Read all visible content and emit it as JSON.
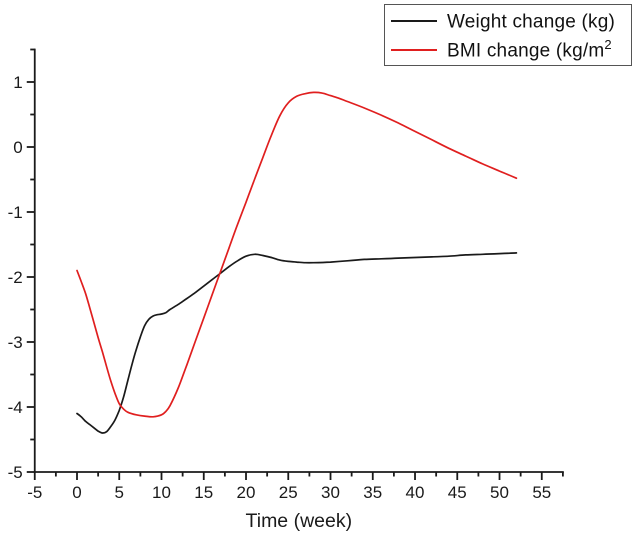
{
  "chart_data": {
    "type": "line",
    "title": "",
    "xlabel": "Time (week)",
    "ylabel": "",
    "xlim": [
      -5,
      57.5
    ],
    "ylim": [
      -5,
      1.5
    ],
    "x_ticks": [
      -5,
      0,
      5,
      10,
      15,
      20,
      25,
      30,
      35,
      40,
      45,
      50,
      55
    ],
    "x_minor_step": 2.5,
    "y_ticks": [
      1,
      0,
      -1,
      -2,
      -3,
      -4,
      -5
    ],
    "y_minor_step": 0.5,
    "grid": false,
    "legend_position": "top-right",
    "series": [
      {
        "name": "Weight change (kg)",
        "color": "#1a1a1a",
        "points": [
          [
            0,
            -4.1
          ],
          [
            0.5,
            -4.15
          ],
          [
            1,
            -4.22
          ],
          [
            1.5,
            -4.27
          ],
          [
            2,
            -4.32
          ],
          [
            2.5,
            -4.37
          ],
          [
            3,
            -4.4
          ],
          [
            3.5,
            -4.38
          ],
          [
            4,
            -4.3
          ],
          [
            4.5,
            -4.2
          ],
          [
            5,
            -4.05
          ],
          [
            5.5,
            -3.85
          ],
          [
            6,
            -3.6
          ],
          [
            6.5,
            -3.35
          ],
          [
            7,
            -3.12
          ],
          [
            7.5,
            -2.92
          ],
          [
            8,
            -2.75
          ],
          [
            8.5,
            -2.65
          ],
          [
            9,
            -2.6
          ],
          [
            9.5,
            -2.58
          ],
          [
            10,
            -2.57
          ],
          [
            10.5,
            -2.55
          ],
          [
            11,
            -2.5
          ],
          [
            12,
            -2.42
          ],
          [
            13,
            -2.33
          ],
          [
            14,
            -2.24
          ],
          [
            15,
            -2.14
          ],
          [
            16,
            -2.04
          ],
          [
            17,
            -1.94
          ],
          [
            18,
            -1.84
          ],
          [
            19,
            -1.75
          ],
          [
            20,
            -1.68
          ],
          [
            21,
            -1.65
          ],
          [
            22,
            -1.67
          ],
          [
            23,
            -1.7
          ],
          [
            24,
            -1.74
          ],
          [
            25,
            -1.76
          ],
          [
            26,
            -1.77
          ],
          [
            27,
            -1.78
          ],
          [
            28,
            -1.78
          ],
          [
            30,
            -1.77
          ],
          [
            32,
            -1.75
          ],
          [
            34,
            -1.73
          ],
          [
            36,
            -1.72
          ],
          [
            38,
            -1.71
          ],
          [
            40,
            -1.7
          ],
          [
            42,
            -1.69
          ],
          [
            44,
            -1.68
          ],
          [
            46,
            -1.66
          ],
          [
            48,
            -1.65
          ],
          [
            50,
            -1.64
          ],
          [
            52,
            -1.63
          ]
        ]
      },
      {
        "name": "BMI change (kg/m2",
        "color": "#e01f1f",
        "points": [
          [
            0,
            -1.9
          ],
          [
            0.5,
            -2.07
          ],
          [
            1,
            -2.25
          ],
          [
            1.5,
            -2.47
          ],
          [
            2,
            -2.7
          ],
          [
            2.5,
            -2.93
          ],
          [
            3,
            -3.15
          ],
          [
            3.5,
            -3.38
          ],
          [
            4,
            -3.6
          ],
          [
            4.5,
            -3.79
          ],
          [
            5,
            -3.95
          ],
          [
            5.5,
            -4.03
          ],
          [
            6,
            -4.08
          ],
          [
            7,
            -4.12
          ],
          [
            8,
            -4.14
          ],
          [
            9,
            -4.15
          ],
          [
            10,
            -4.12
          ],
          [
            10.5,
            -4.07
          ],
          [
            11,
            -3.98
          ],
          [
            12,
            -3.7
          ],
          [
            13,
            -3.35
          ],
          [
            14,
            -2.99
          ],
          [
            15,
            -2.63
          ],
          [
            16,
            -2.27
          ],
          [
            17,
            -1.91
          ],
          [
            18,
            -1.55
          ],
          [
            19,
            -1.19
          ],
          [
            20,
            -0.85
          ],
          [
            21,
            -0.5
          ],
          [
            22,
            -0.16
          ],
          [
            23,
            0.18
          ],
          [
            24,
            0.48
          ],
          [
            25,
            0.68
          ],
          [
            26,
            0.78
          ],
          [
            27,
            0.82
          ],
          [
            28,
            0.84
          ],
          [
            29,
            0.83
          ],
          [
            30,
            0.79
          ],
          [
            31,
            0.75
          ],
          [
            32,
            0.7
          ],
          [
            34,
            0.6
          ],
          [
            36,
            0.49
          ],
          [
            38,
            0.37
          ],
          [
            40,
            0.24
          ],
          [
            42,
            0.11
          ],
          [
            44,
            -0.02
          ],
          [
            46,
            -0.14
          ],
          [
            48,
            -0.26
          ],
          [
            50,
            -0.37
          ],
          [
            52,
            -0.48
          ]
        ]
      }
    ]
  },
  "legend": {
    "border_color": "#555555",
    "items": [
      {
        "label": "Weight change (kg)",
        "sup": ""
      },
      {
        "label": "BMI change (kg/m",
        "sup": "2"
      }
    ]
  },
  "axes": {
    "x_title": "Time (week)"
  }
}
